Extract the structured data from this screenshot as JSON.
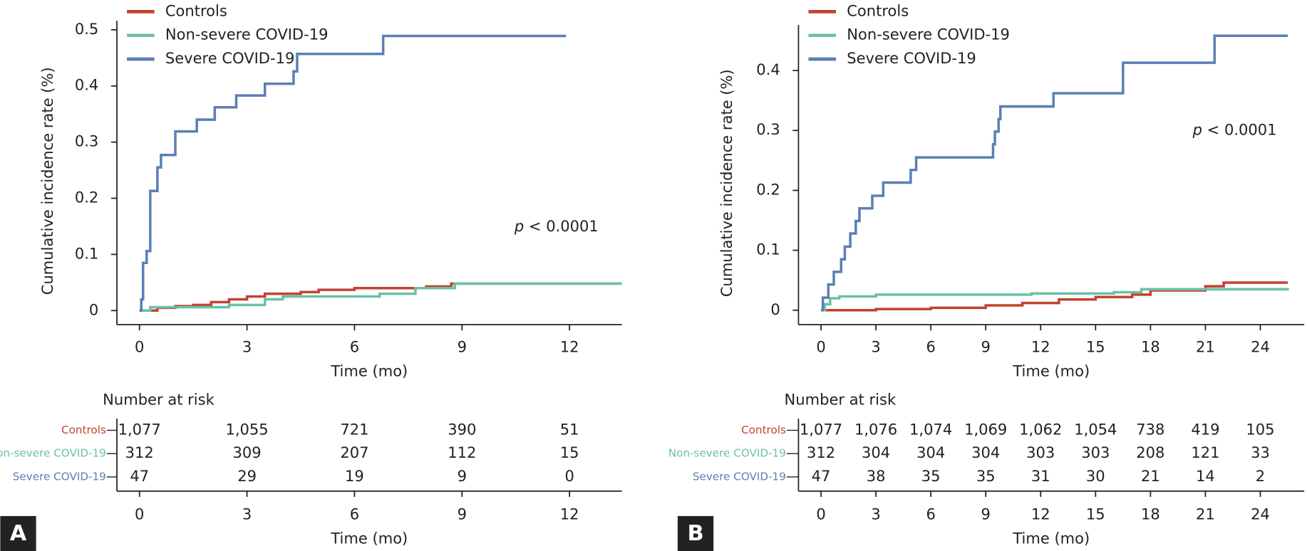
{
  "chart_data": [
    {
      "type": "line",
      "step": true,
      "panel_label": "A",
      "xlabel": "Time (mo)",
      "ylabel": "Cumulative incidence rate (%)",
      "annotation": "p < 0.0001",
      "legend": "upper left",
      "xlim": [
        -0.63,
        13.46
      ],
      "ylim": [
        -0.025,
        0.516
      ],
      "xticks": [
        0,
        3,
        6,
        9,
        12
      ],
      "yticks": [
        0,
        0.1,
        0.2,
        0.3,
        0.4,
        0.5
      ],
      "series": [
        {
          "name": "Controls",
          "color": "#c1432f",
          "x": [
            0,
            0.5,
            1,
            1.5,
            2,
            2.5,
            3,
            3.5,
            4.5,
            5,
            6,
            8,
            8.7,
            13.46
          ],
          "values": [
            0,
            0.005,
            0.008,
            0.01,
            0.015,
            0.02,
            0.025,
            0.03,
            0.033,
            0.037,
            0.04,
            0.043,
            0.048,
            0.048
          ]
        },
        {
          "name": "Non-severe COVID-19",
          "color": "#6cc0a5",
          "x": [
            0,
            0.3,
            2.5,
            3.5,
            4,
            6.7,
            7.7,
            8.8,
            13.46
          ],
          "values": [
            0,
            0.006,
            0.01,
            0.02,
            0.025,
            0.03,
            0.04,
            0.048,
            0.048
          ]
        },
        {
          "name": "Severe COVID-19",
          "color": "#5b7fb5",
          "x": [
            0,
            0.05,
            0.1,
            0.2,
            0.3,
            0.5,
            0.6,
            1.0,
            1.6,
            2.1,
            2.7,
            3.5,
            4.3,
            4.4,
            6.8,
            11.9
          ],
          "values": [
            0,
            0.02,
            0.085,
            0.106,
            0.213,
            0.255,
            0.277,
            0.319,
            0.34,
            0.362,
            0.383,
            0.404,
            0.426,
            0.457,
            0.489,
            0.489
          ]
        }
      ],
      "risk_table": {
        "title": "Number at risk",
        "rows": [
          {
            "values": [
              "1,077",
              "1,055",
              "721",
              "390",
              "51"
            ]
          },
          {
            "values": [
              "312",
              "309",
              "207",
              "112",
              "15"
            ]
          },
          {
            "values": [
              "47",
              "29",
              "19",
              "9",
              "0"
            ]
          }
        ]
      }
    },
    {
      "type": "line",
      "step": true,
      "panel_label": "B",
      "xlabel": "Time (mo)",
      "ylabel": "Cumulative incidence rate (%)",
      "annotation": "p < 0.0001",
      "legend": "upper left",
      "xlim": [
        -1.23,
        26.4
      ],
      "ylim": [
        -0.024,
        0.476
      ],
      "xticks": [
        0,
        3,
        6,
        9,
        12,
        15,
        18,
        21,
        24
      ],
      "yticks": [
        0,
        0.1,
        0.2,
        0.3,
        0.4
      ],
      "series": [
        {
          "name": "Controls",
          "color": "#c1432f",
          "x": [
            0,
            3,
            6,
            9,
            11,
            13,
            15,
            17,
            18,
            21,
            22,
            25.5
          ],
          "values": [
            0,
            0.002,
            0.004,
            0.008,
            0.012,
            0.018,
            0.022,
            0.026,
            0.033,
            0.04,
            0.046,
            0.046
          ]
        },
        {
          "name": "Non-severe COVID-19",
          "color": "#6cc0a5",
          "x": [
            0,
            0.2,
            0.5,
            1,
            3,
            11.5,
            16,
            17.5,
            25.5
          ],
          "values": [
            0,
            0.01,
            0.02,
            0.023,
            0.026,
            0.028,
            0.03,
            0.035,
            0.037
          ]
        },
        {
          "name": "Severe COVID-19",
          "color": "#5b7fb5",
          "x": [
            0,
            0.1,
            0.4,
            0.7,
            1.1,
            1.3,
            1.6,
            1.9,
            2.1,
            2.8,
            3.4,
            4.9,
            5.2,
            9.4,
            9.5,
            9.7,
            9.8,
            12.7,
            16.5,
            21.5,
            25.5
          ],
          "values": [
            0,
            0.021,
            0.043,
            0.064,
            0.085,
            0.106,
            0.128,
            0.149,
            0.17,
            0.191,
            0.213,
            0.234,
            0.255,
            0.277,
            0.298,
            0.319,
            0.34,
            0.362,
            0.413,
            0.458,
            0.458
          ]
        }
      ],
      "risk_table": {
        "title": "Number at risk",
        "rows": [
          {
            "values": [
              "1,077",
              "1,076",
              "1,074",
              "1,069",
              "1,062",
              "1,054",
              "738",
              "419",
              "105"
            ]
          },
          {
            "values": [
              "312",
              "304",
              "304",
              "304",
              "303",
              "303",
              "208",
              "121",
              "33"
            ]
          },
          {
            "values": [
              "47",
              "38",
              "35",
              "35",
              "31",
              "30",
              "21",
              "14",
              "2"
            ]
          }
        ]
      }
    }
  ]
}
